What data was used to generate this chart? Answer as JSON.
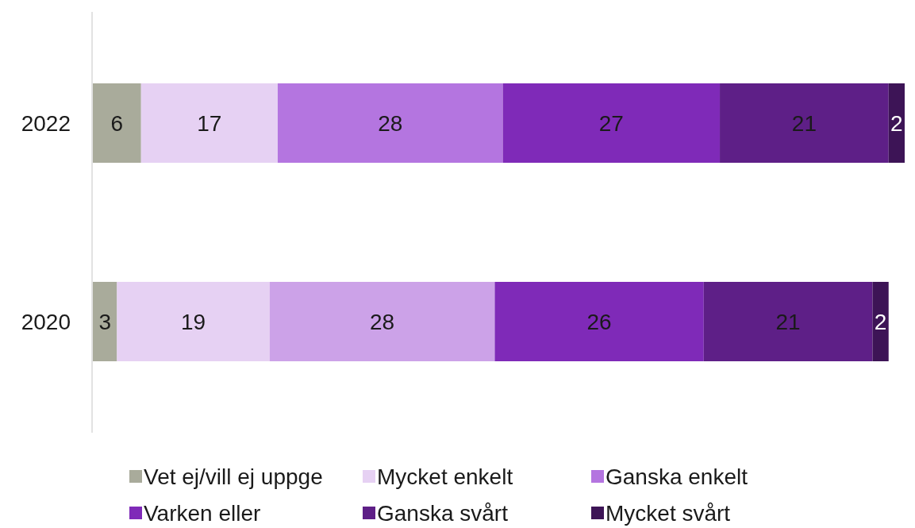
{
  "chart_data": {
    "type": "bar",
    "orientation": "horizontal",
    "stacked": true,
    "data_labels": true,
    "legend": "bottom",
    "categories": [
      "2022",
      "2020"
    ],
    "series": [
      {
        "name": "Vet ej/vill ej uppge",
        "color": "#a9ab9b",
        "values": [
          6,
          3
        ]
      },
      {
        "name": "Mycket enkelt",
        "color": "#e6d1f3",
        "values": [
          17,
          19
        ]
      },
      {
        "name": "Ganska enkelt",
        "color": "#b475e0",
        "colors": [
          "#b475e0",
          "#cca2e8"
        ],
        "values": [
          28,
          28
        ]
      },
      {
        "name": "Varken eller",
        "color": "#7f2ab8",
        "values": [
          27,
          26
        ]
      },
      {
        "name": "Ganska svårt",
        "color": "#5e1f87",
        "values": [
          21,
          21
        ]
      },
      {
        "name": "Mycket svårt",
        "color": "#3d1456",
        "values": [
          2,
          2
        ]
      }
    ]
  }
}
